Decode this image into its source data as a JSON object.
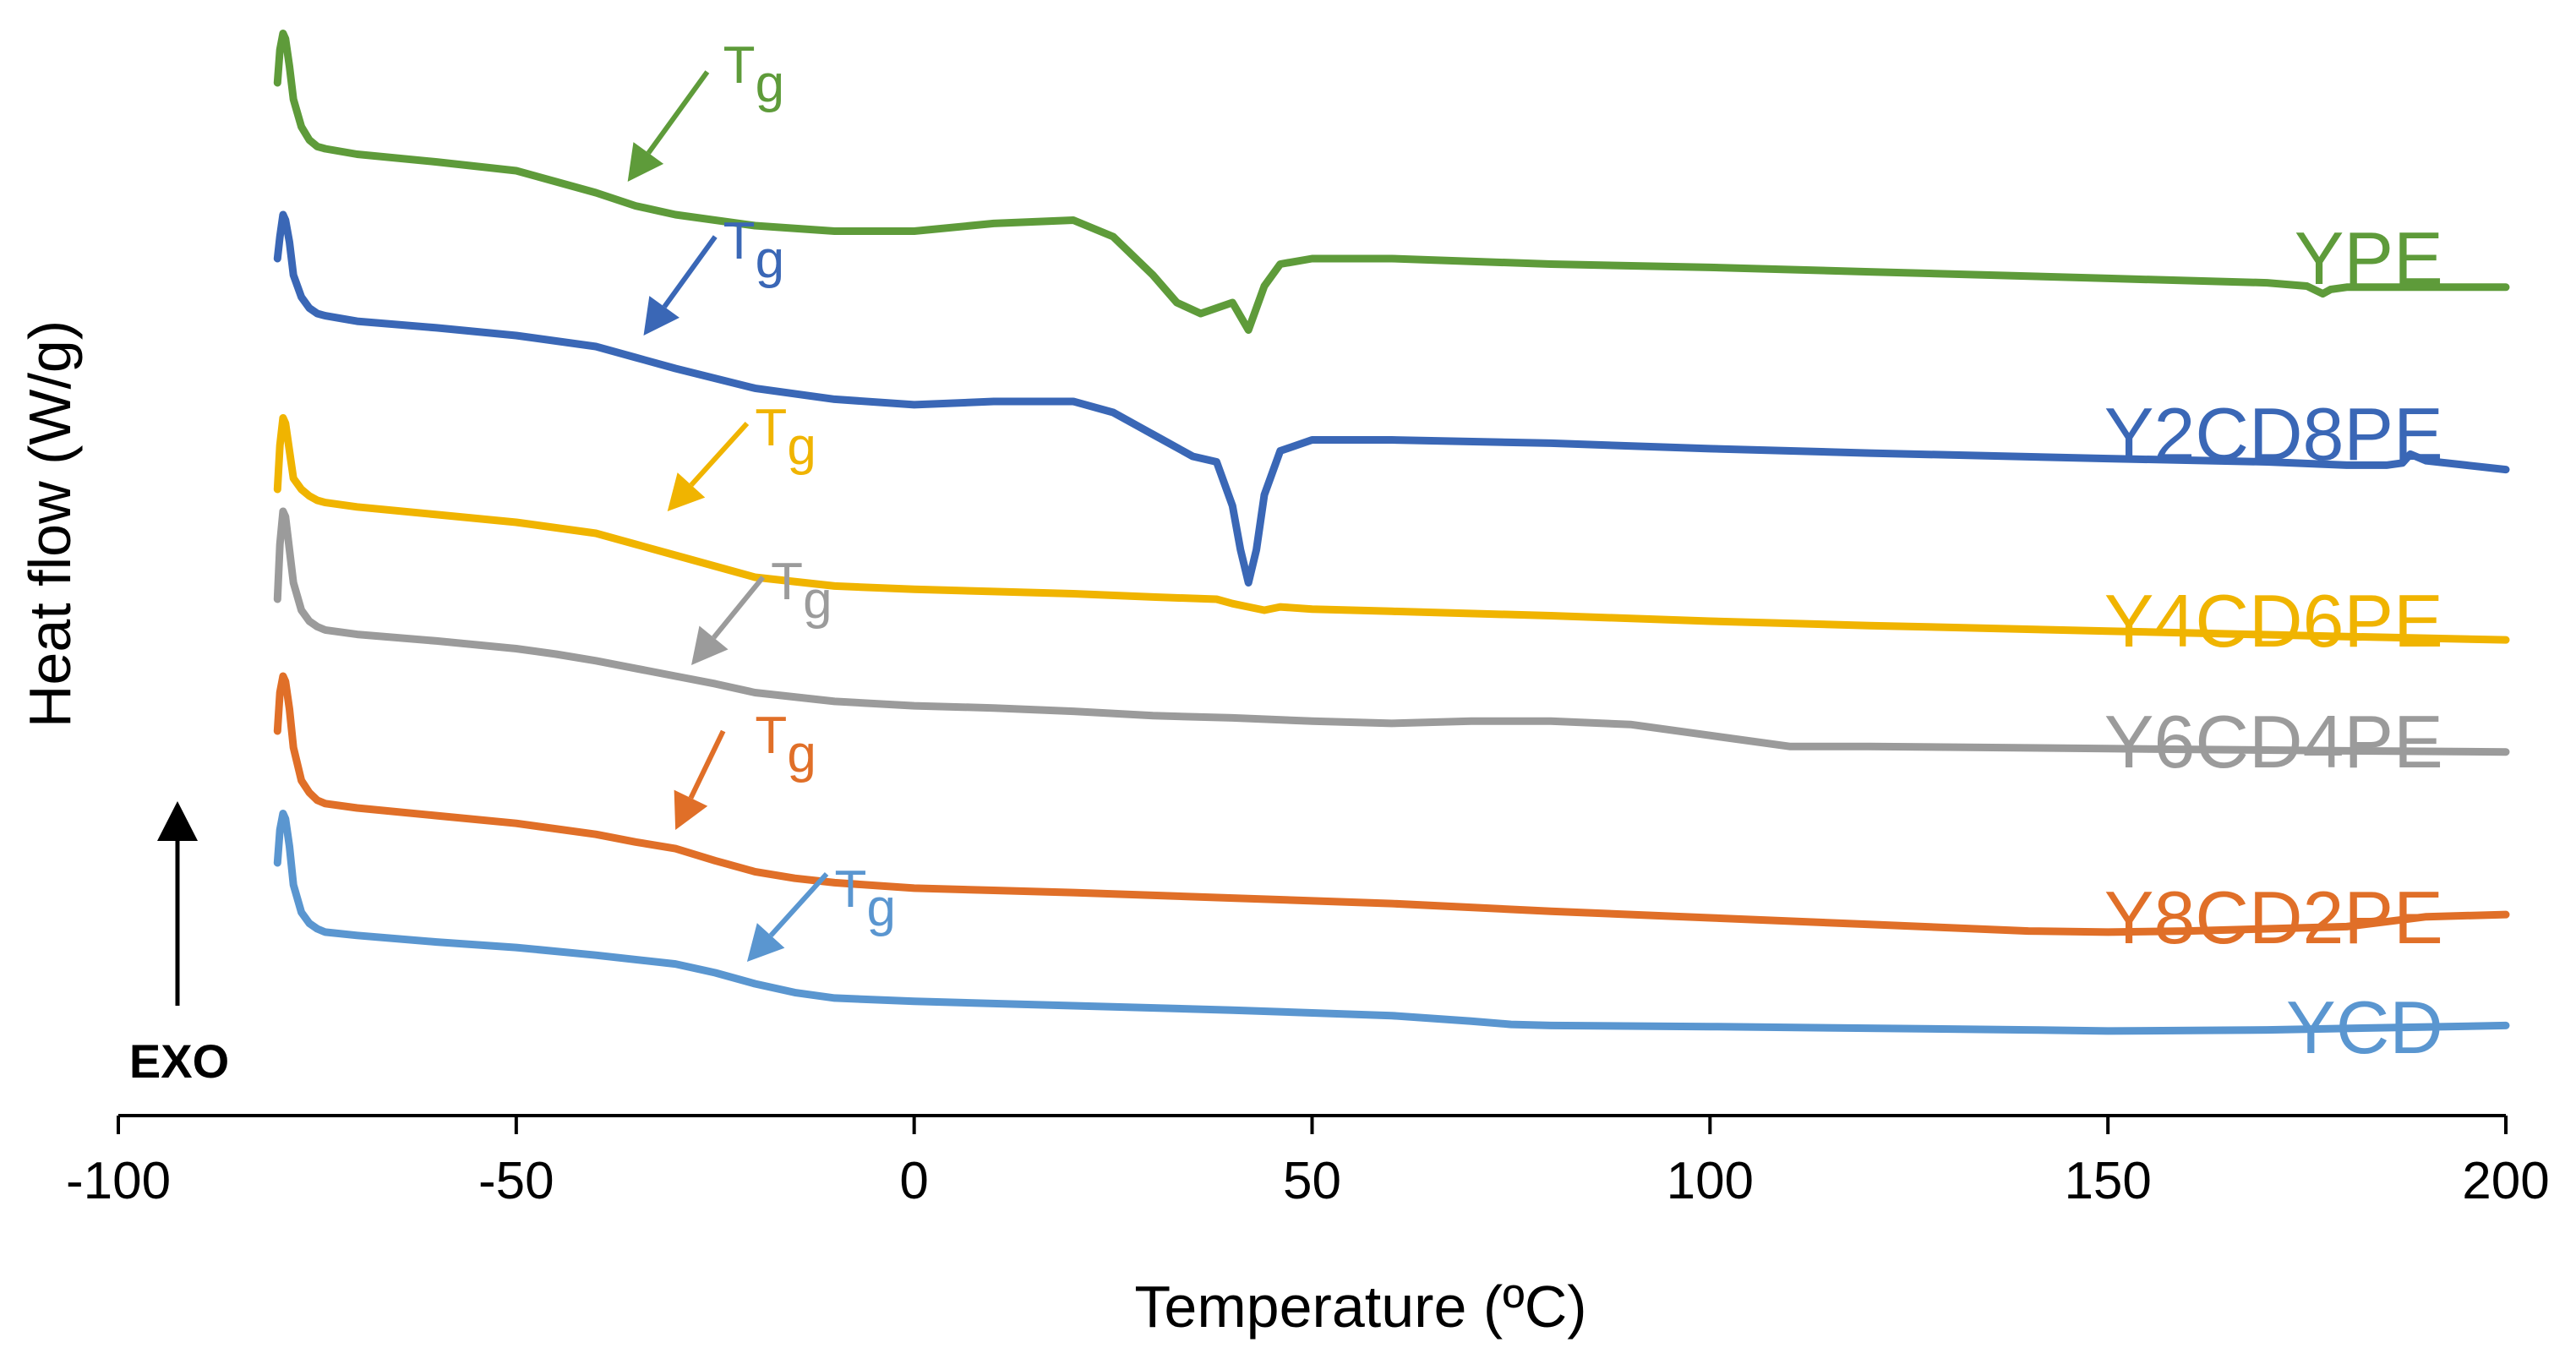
{
  "chart_data": {
    "type": "line",
    "title": "",
    "xlabel": "Temperature  (ºC)",
    "ylabel": "Heat flow  (W/g)",
    "xlim": [
      -100,
      200
    ],
    "xticks": [
      "-100",
      "-50",
      "0",
      "50",
      "100",
      "150",
      "200"
    ],
    "xtick_values": [
      -100,
      -50,
      0,
      50,
      100,
      150,
      200
    ],
    "ylim": [
      0,
      100
    ],
    "y_units": "arbitrary offset heat flow (0 = bottom of plot area, 100 = top)",
    "grid": false,
    "exo_label": "EXO",
    "tg_label": {
      "main": "T",
      "sub": "g"
    },
    "colors": {
      "YPE": "#5e9b3a",
      "Y2CD8PE": "#3a67b6",
      "Y4CD6PE": "#f0b400",
      "Y6CD4PE": "#9b9b9b",
      "Y8CD2PE": "#e06f28",
      "YCD": "#5a96d0",
      "axis": "#000000"
    },
    "series": [
      {
        "name": "YPE",
        "color": "#5e9b3a",
        "label_pos": [
          190,
          78
        ],
        "tg": {
          "arrow_from": [
            -26,
            95
          ],
          "arrow_to": [
            -36,
            85
          ],
          "text_at": [
            -24,
            94
          ]
        },
        "x": [
          -80,
          -79.7,
          -79.3,
          -79,
          -78.5,
          -78,
          -77,
          -76,
          -75,
          -74,
          -70,
          -60,
          -50,
          -45,
          -40,
          -35,
          -30,
          -20,
          -10,
          0,
          10,
          20,
          25,
          30,
          33,
          36,
          38,
          40,
          42,
          44,
          46,
          50,
          55,
          60,
          80,
          100,
          120,
          150,
          170,
          175,
          177,
          178,
          180,
          185,
          190,
          200
        ],
        "y": [
          94,
          97,
          98.5,
          98,
          95.5,
          92.5,
          90,
          88.8,
          88.2,
          88,
          87.5,
          86.8,
          86,
          85,
          84,
          82.8,
          82,
          81,
          80.5,
          80.5,
          81.2,
          81.5,
          80,
          76.5,
          74,
          73,
          73.5,
          74,
          71.5,
          75.5,
          77.5,
          78,
          78,
          78,
          77.5,
          77.2,
          76.8,
          76.2,
          75.8,
          75.5,
          74.8,
          75.2,
          75.4,
          75.4,
          75.4,
          75.4
        ]
      },
      {
        "name": "Y2CD8PE",
        "color": "#3a67b6",
        "label_pos": [
          190,
          62
        ],
        "tg": {
          "arrow_from": [
            -25,
            80
          ],
          "arrow_to": [
            -34,
            71
          ],
          "text_at": [
            -24,
            78
          ]
        },
        "x": [
          -80,
          -79.7,
          -79.3,
          -79,
          -78.5,
          -78,
          -77,
          -76,
          -75,
          -74,
          -70,
          -60,
          -50,
          -40,
          -35,
          -30,
          -20,
          -10,
          0,
          10,
          20,
          25,
          30,
          35,
          38,
          40,
          41,
          42,
          43,
          44,
          46,
          50,
          55,
          60,
          80,
          100,
          120,
          150,
          170,
          180,
          185,
          187,
          188,
          190,
          195,
          200
        ],
        "y": [
          78,
          80,
          82,
          81.5,
          79.5,
          76.5,
          74.5,
          73.5,
          73,
          72.8,
          72.3,
          71.7,
          71,
          70,
          69,
          68,
          66.2,
          65.2,
          64.7,
          65,
          65,
          64,
          62,
          60,
          59.5,
          55.5,
          51.5,
          48.5,
          51.5,
          56.5,
          60.5,
          61.5,
          61.5,
          61.5,
          61.2,
          60.7,
          60.3,
          59.8,
          59.5,
          59.2,
          59.2,
          59.4,
          60.2,
          59.6,
          59.2,
          58.8
        ]
      },
      {
        "name": "Y4CD6PE",
        "color": "#f0b400",
        "label_pos": [
          190,
          45
        ],
        "tg": {
          "arrow_from": [
            -21,
            63
          ],
          "arrow_to": [
            -31,
            55
          ],
          "text_at": [
            -20,
            61
          ]
        },
        "x": [
          -80,
          -79.7,
          -79.3,
          -79,
          -78.5,
          -78,
          -77,
          -76,
          -75,
          -74,
          -70,
          -60,
          -50,
          -40,
          -35,
          -30,
          -20,
          -10,
          0,
          10,
          20,
          30,
          38,
          40,
          42,
          44,
          46,
          50,
          60,
          80,
          100,
          120,
          150,
          180,
          200
        ],
        "y": [
          57,
          61,
          63.5,
          63,
          60.5,
          58,
          57,
          56.4,
          56,
          55.8,
          55.4,
          54.7,
          54,
          53,
          52,
          51,
          49,
          48.2,
          47.9,
          47.7,
          47.5,
          47.2,
          47,
          46.6,
          46.3,
          46,
          46.3,
          46.1,
          45.9,
          45.5,
          45,
          44.6,
          44.1,
          43.6,
          43.3
        ]
      },
      {
        "name": "Y6CD4PE",
        "color": "#9b9b9b",
        "label_pos": [
          190,
          34
        ],
        "tg": {
          "arrow_from": [
            -19,
            49
          ],
          "arrow_to": [
            -28,
            41
          ],
          "text_at": [
            -18,
            47
          ]
        },
        "x": [
          -80,
          -79.7,
          -79.3,
          -79,
          -78.5,
          -78,
          -77,
          -76,
          -75,
          -74,
          -70,
          -60,
          -50,
          -45,
          -40,
          -35,
          -30,
          -25,
          -20,
          -10,
          0,
          10,
          20,
          30,
          40,
          50,
          60,
          70,
          80,
          90,
          100,
          110,
          120,
          150,
          180,
          200
        ],
        "y": [
          47,
          52,
          55,
          54.5,
          51.5,
          48.5,
          46,
          45,
          44.5,
          44.2,
          43.8,
          43.2,
          42.5,
          42,
          41.4,
          40.7,
          40,
          39.3,
          38.5,
          37.7,
          37.3,
          37.1,
          36.8,
          36.4,
          36.2,
          35.9,
          35.7,
          35.9,
          35.9,
          35.6,
          34.6,
          33.6,
          33.6,
          33.4,
          33.2,
          33.1
        ]
      },
      {
        "name": "Y8CD2PE",
        "color": "#e06f28",
        "label_pos": [
          190,
          18
        ],
        "tg": {
          "arrow_from": [
            -24,
            35
          ],
          "arrow_to": [
            -30,
            26
          ],
          "text_at": [
            -20,
            33
          ]
        },
        "x": [
          -80,
          -79.7,
          -79.3,
          -79,
          -78.5,
          -78,
          -77,
          -76,
          -75,
          -74,
          -70,
          -60,
          -50,
          -40,
          -35,
          -30,
          -25,
          -20,
          -15,
          -10,
          0,
          10,
          20,
          40,
          60,
          80,
          100,
          120,
          140,
          150,
          160,
          170,
          180,
          190,
          200
        ],
        "y": [
          35,
          38.5,
          40,
          39.5,
          37,
          33.5,
          30.5,
          29.4,
          28.7,
          28.4,
          28,
          27.3,
          26.6,
          25.6,
          24.9,
          24.3,
          23.2,
          22.2,
          21.6,
          21.2,
          20.7,
          20.5,
          20.3,
          19.8,
          19.3,
          18.6,
          18,
          17.4,
          16.8,
          16.7,
          16.8,
          17,
          17.2,
          18.1,
          18.3
        ]
      },
      {
        "name": "YCD",
        "color": "#5a96d0",
        "label_pos": [
          190,
          8
        ],
        "tg": {
          "arrow_from": [
            -11,
            22
          ],
          "arrow_to": [
            -21,
            14
          ],
          "text_at": [
            -10,
            19
          ]
        },
        "x": [
          -80,
          -79.7,
          -79.3,
          -79,
          -78.5,
          -78,
          -77,
          -76,
          -75,
          -74,
          -70,
          -60,
          -50,
          -40,
          -30,
          -25,
          -20,
          -15,
          -10,
          0,
          20,
          40,
          60,
          70,
          75,
          80,
          100,
          140,
          150,
          170,
          200
        ],
        "y": [
          23,
          26,
          27.5,
          27,
          24.5,
          21,
          18.5,
          17.5,
          17,
          16.7,
          16.4,
          15.8,
          15.3,
          14.6,
          13.8,
          13,
          12,
          11.2,
          10.7,
          10.4,
          10,
          9.6,
          9.1,
          8.6,
          8.3,
          8.2,
          8.1,
          7.8,
          7.7,
          7.8,
          8.2
        ]
      }
    ]
  }
}
